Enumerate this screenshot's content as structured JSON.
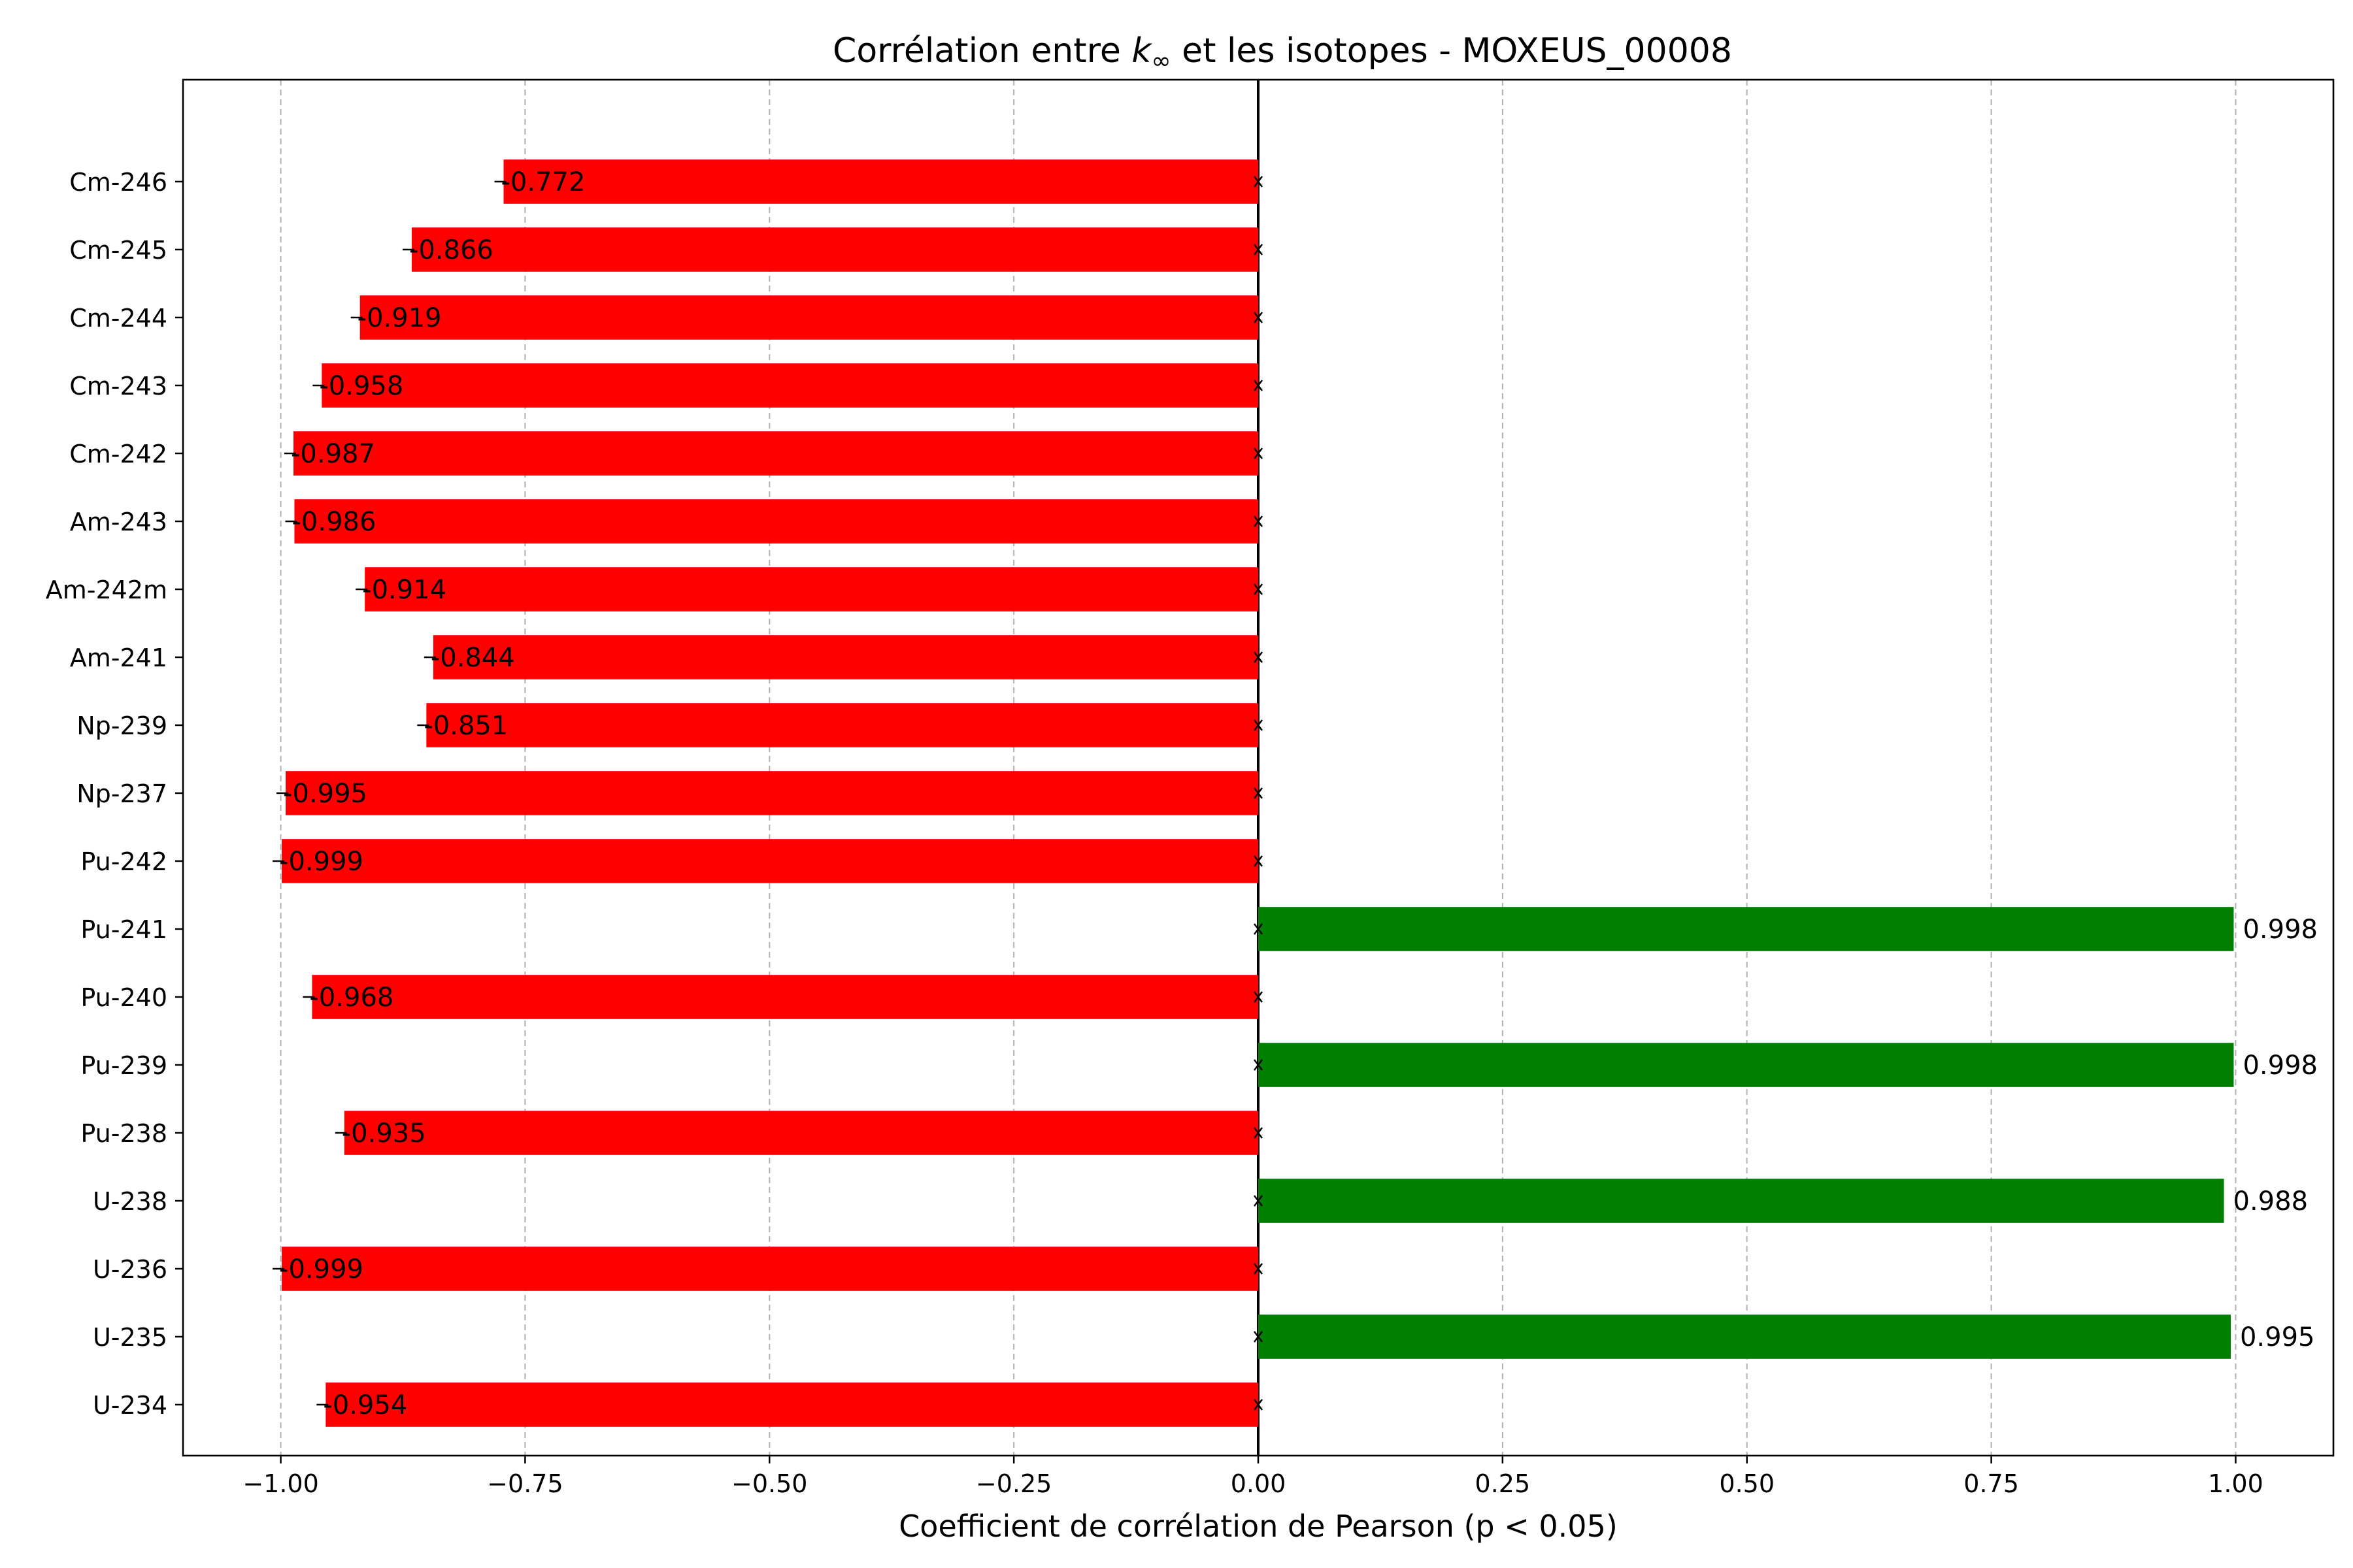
{
  "chart_data": {
    "type": "bar",
    "orientation": "horizontal",
    "title_parts": [
      "Corrélation entre ",
      "k",
      "∞",
      " et les isotopes - MOXEUS_00008"
    ],
    "xlabel": "Coefficient de corrélation de Pearson (p < 0.05)",
    "ylabel": "",
    "xlim": [
      -1.1,
      1.1
    ],
    "xticks": [
      -1.0,
      -0.75,
      -0.5,
      -0.25,
      0.0,
      0.25,
      0.5,
      0.75,
      1.0
    ],
    "xtick_labels": [
      "−1.00",
      "−0.75",
      "−0.50",
      "−0.25",
      "0.00",
      "0.25",
      "0.50",
      "0.75",
      "1.00"
    ],
    "grid": "vertical dashed",
    "categories": [
      "U-234",
      "U-235",
      "U-236",
      "U-238",
      "Pu-238",
      "Pu-239",
      "Pu-240",
      "Pu-241",
      "Pu-242",
      "Np-237",
      "Np-239",
      "Am-241",
      "Am-242m",
      "Am-243",
      "Cm-242",
      "Cm-243",
      "Cm-244",
      "Cm-245",
      "Cm-246"
    ],
    "values": [
      -0.954,
      0.995,
      -0.999,
      0.988,
      -0.935,
      0.998,
      -0.968,
      0.998,
      -0.999,
      -0.995,
      -0.851,
      -0.844,
      -0.914,
      -0.986,
      -0.987,
      -0.958,
      -0.919,
      -0.866,
      -0.772
    ],
    "value_labels": [
      "-0.954",
      "0.995",
      "-0.999",
      "0.988",
      "-0.935",
      "0.998",
      "-0.968",
      "0.998",
      "-0.999",
      "-0.995",
      "-0.851",
      "-0.844",
      "-0.914",
      "-0.986",
      "-0.987",
      "-0.958",
      "-0.919",
      "-0.866",
      "-0.772"
    ],
    "colors": {
      "positive": "#008000",
      "negative": "#ff0000",
      "zero_line": "#000000",
      "grid": "#b0b0b0"
    }
  }
}
